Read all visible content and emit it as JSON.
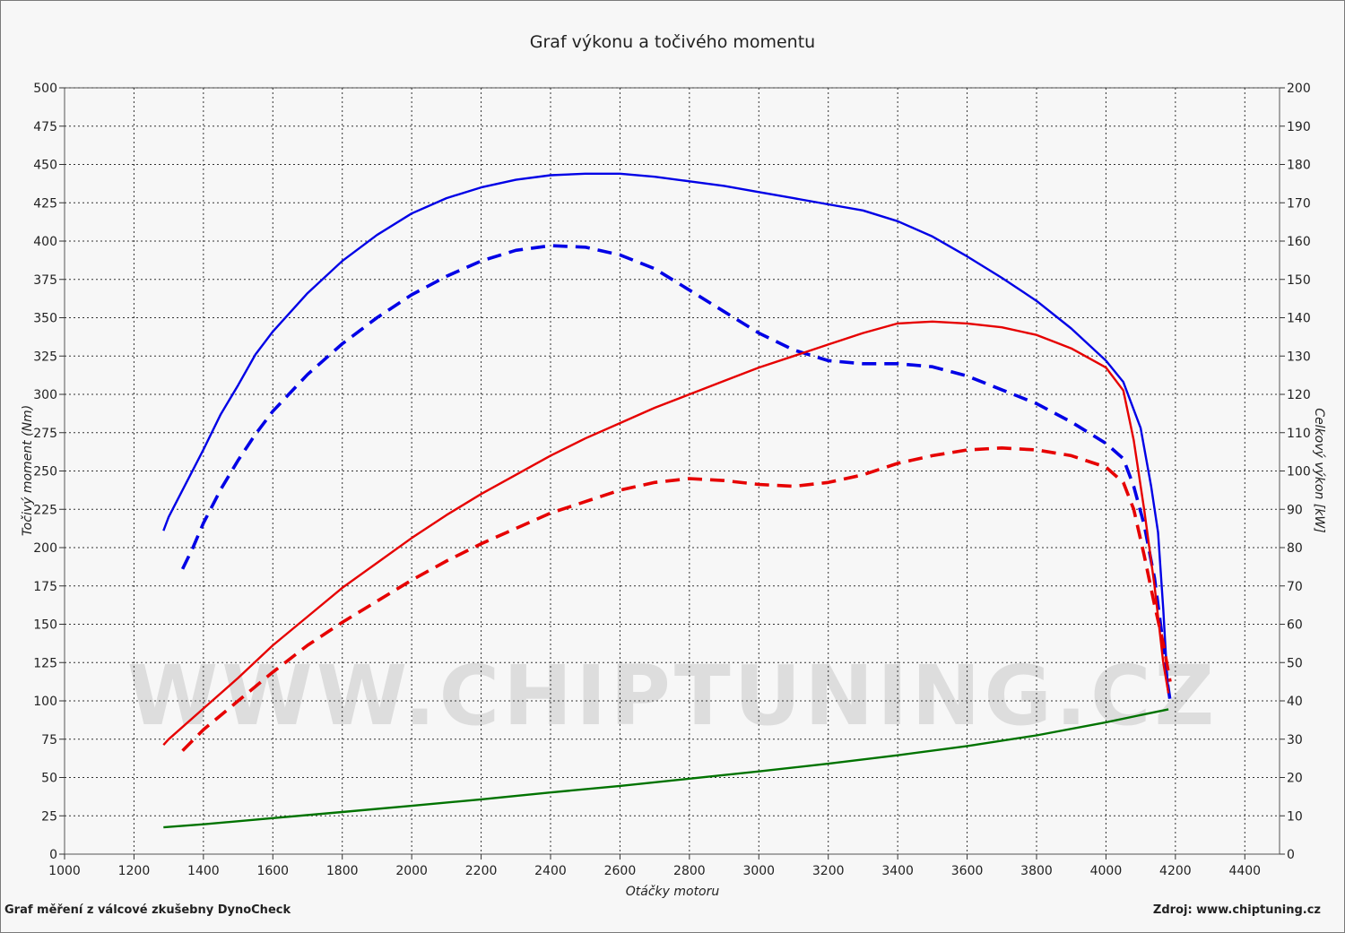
{
  "chart_data": {
    "type": "line",
    "title": "Graf výkonu a točivého momentu",
    "xlabel": "Otáčky motoru",
    "ylabel_left": "Točivý moment (Nm)",
    "ylabel_right": "Celkový výkon [kW]",
    "xlim": [
      1000,
      4500
    ],
    "ylim_left": [
      0,
      500
    ],
    "ylim_right": [
      0,
      200
    ],
    "x_ticks": [
      "1000",
      "1200",
      "1400",
      "1600",
      "1800",
      "2000",
      "2200",
      "2400",
      "2600",
      "2800",
      "3000",
      "3200",
      "3400",
      "3600",
      "3800",
      "4000",
      "4200",
      "4400"
    ],
    "y_left_ticks": [
      "0",
      "25",
      "50",
      "75",
      "100",
      "125",
      "150",
      "175",
      "200",
      "225",
      "250",
      "275",
      "300",
      "325",
      "350",
      "375",
      "400",
      "425",
      "450",
      "475",
      "500"
    ],
    "y_right_ticks": [
      "0",
      "10",
      "20",
      "30",
      "40",
      "50",
      "60",
      "70",
      "80",
      "90",
      "100",
      "110",
      "120",
      "130",
      "140",
      "150",
      "160",
      "170",
      "180",
      "190",
      "200"
    ],
    "grid": true,
    "watermark": "WWW.CHIPTUNING.CZ",
    "series": [
      {
        "key": "torque_tuned",
        "axis": "left",
        "color": "#0000e6",
        "dash": false,
        "points": [
          [
            1285,
            211
          ],
          [
            1300,
            220
          ],
          [
            1350,
            242
          ],
          [
            1400,
            264
          ],
          [
            1450,
            287
          ],
          [
            1500,
            306
          ],
          [
            1550,
            326
          ],
          [
            1600,
            341
          ],
          [
            1700,
            366
          ],
          [
            1800,
            387
          ],
          [
            1900,
            404
          ],
          [
            2000,
            418
          ],
          [
            2100,
            428
          ],
          [
            2200,
            435
          ],
          [
            2300,
            440
          ],
          [
            2400,
            443
          ],
          [
            2500,
            444
          ],
          [
            2600,
            444
          ],
          [
            2700,
            442
          ],
          [
            2800,
            439
          ],
          [
            2900,
            436
          ],
          [
            3000,
            432
          ],
          [
            3100,
            428
          ],
          [
            3200,
            424
          ],
          [
            3300,
            420
          ],
          [
            3400,
            413
          ],
          [
            3500,
            403
          ],
          [
            3600,
            390
          ],
          [
            3700,
            376
          ],
          [
            3800,
            361
          ],
          [
            3900,
            343
          ],
          [
            4000,
            322
          ],
          [
            4050,
            308
          ],
          [
            4100,
            278
          ],
          [
            4130,
            240
          ],
          [
            4150,
            210
          ],
          [
            4165,
            160
          ],
          [
            4175,
            120
          ],
          [
            4180,
            105
          ]
        ]
      },
      {
        "key": "torque_stock",
        "axis": "left",
        "color": "#0000e6",
        "dash": true,
        "points": [
          [
            1340,
            186
          ],
          [
            1370,
            200
          ],
          [
            1400,
            216
          ],
          [
            1450,
            238
          ],
          [
            1500,
            257
          ],
          [
            1550,
            274
          ],
          [
            1600,
            289
          ],
          [
            1700,
            313
          ],
          [
            1800,
            333
          ],
          [
            1900,
            350
          ],
          [
            2000,
            365
          ],
          [
            2100,
            377
          ],
          [
            2200,
            387
          ],
          [
            2300,
            394
          ],
          [
            2400,
            397
          ],
          [
            2500,
            396
          ],
          [
            2600,
            391
          ],
          [
            2700,
            382
          ],
          [
            2800,
            368
          ],
          [
            2900,
            354
          ],
          [
            3000,
            340
          ],
          [
            3100,
            329
          ],
          [
            3200,
            322
          ],
          [
            3300,
            320
          ],
          [
            3400,
            320
          ],
          [
            3500,
            318
          ],
          [
            3600,
            312
          ],
          [
            3700,
            303
          ],
          [
            3800,
            294
          ],
          [
            3900,
            282
          ],
          [
            4000,
            268
          ],
          [
            4050,
            258
          ],
          [
            4080,
            240
          ],
          [
            4110,
            215
          ],
          [
            4140,
            180
          ],
          [
            4160,
            145
          ],
          [
            4175,
            115
          ],
          [
            4185,
            100
          ]
        ]
      },
      {
        "key": "power_tuned",
        "axis": "right",
        "color": "#e60000",
        "dash": false,
        "points": [
          [
            1285,
            28.5
          ],
          [
            1300,
            30
          ],
          [
            1400,
            38
          ],
          [
            1500,
            46
          ],
          [
            1600,
            54.5
          ],
          [
            1700,
            62
          ],
          [
            1800,
            69.5
          ],
          [
            1900,
            76
          ],
          [
            2000,
            82.5
          ],
          [
            2100,
            88.5
          ],
          [
            2200,
            94
          ],
          [
            2300,
            99
          ],
          [
            2400,
            104
          ],
          [
            2500,
            108.5
          ],
          [
            2600,
            112.5
          ],
          [
            2700,
            116.5
          ],
          [
            2800,
            120
          ],
          [
            2900,
            123.5
          ],
          [
            3000,
            127
          ],
          [
            3100,
            130
          ],
          [
            3200,
            133
          ],
          [
            3300,
            136
          ],
          [
            3400,
            138.5
          ],
          [
            3500,
            139
          ],
          [
            3600,
            138.5
          ],
          [
            3700,
            137.5
          ],
          [
            3800,
            135.5
          ],
          [
            3900,
            132
          ],
          [
            4000,
            127
          ],
          [
            4050,
            121
          ],
          [
            4080,
            108
          ],
          [
            4110,
            90
          ],
          [
            4140,
            70
          ],
          [
            4165,
            50
          ],
          [
            4180,
            42
          ]
        ]
      },
      {
        "key": "power_stock",
        "axis": "right",
        "color": "#e60000",
        "dash": true,
        "points": [
          [
            1340,
            27
          ],
          [
            1400,
            32.5
          ],
          [
            1500,
            40
          ],
          [
            1600,
            47.5
          ],
          [
            1700,
            54.5
          ],
          [
            1800,
            60.5
          ],
          [
            1900,
            66
          ],
          [
            2000,
            71.5
          ],
          [
            2100,
            76.5
          ],
          [
            2200,
            81
          ],
          [
            2300,
            85
          ],
          [
            2400,
            89
          ],
          [
            2500,
            92
          ],
          [
            2600,
            95
          ],
          [
            2700,
            97
          ],
          [
            2800,
            98
          ],
          [
            2900,
            97.5
          ],
          [
            3000,
            96.5
          ],
          [
            3100,
            96
          ],
          [
            3200,
            97
          ],
          [
            3300,
            99
          ],
          [
            3400,
            102
          ],
          [
            3500,
            104
          ],
          [
            3600,
            105.5
          ],
          [
            3700,
            106
          ],
          [
            3800,
            105.5
          ],
          [
            3900,
            104
          ],
          [
            4000,
            101
          ],
          [
            4050,
            97
          ],
          [
            4080,
            90
          ],
          [
            4110,
            78
          ],
          [
            4140,
            65
          ],
          [
            4165,
            55
          ],
          [
            4185,
            45
          ]
        ]
      },
      {
        "key": "power_loss",
        "axis": "right",
        "color": "#007300",
        "dash": false,
        "points": [
          [
            1285,
            7
          ],
          [
            1400,
            7.8
          ],
          [
            1600,
            9.4
          ],
          [
            1800,
            11
          ],
          [
            2000,
            12.6
          ],
          [
            2200,
            14.3
          ],
          [
            2400,
            16.1
          ],
          [
            2600,
            17.8
          ],
          [
            2800,
            19.7
          ],
          [
            3000,
            21.6
          ],
          [
            3200,
            23.6
          ],
          [
            3400,
            25.8
          ],
          [
            3600,
            28.2
          ],
          [
            3800,
            31
          ],
          [
            4000,
            34.4
          ],
          [
            4180,
            37.8
          ]
        ]
      }
    ]
  },
  "footer": {
    "left": "Graf měření z válcové zkušebny DynoCheck",
    "right": "Zdroj: www.chiptuning.cz"
  }
}
